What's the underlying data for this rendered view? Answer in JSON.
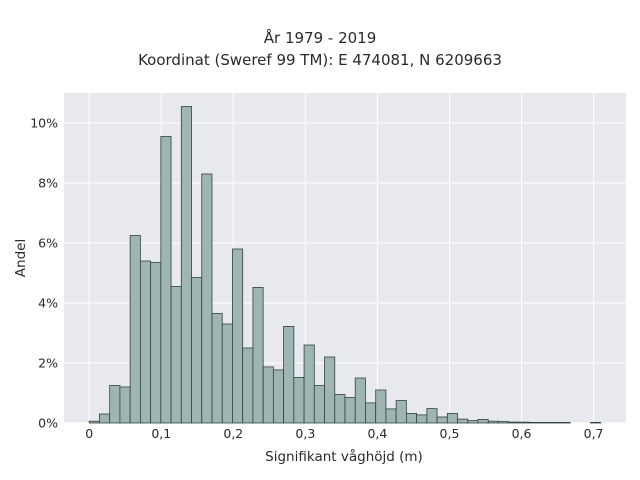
{
  "chart_data": {
    "type": "bar",
    "title": "År 1979 - 2019",
    "subtitle": "Koordinat (Sweref 99 TM): E 474081, N 6209663",
    "xlabel": "Signifikant våghöjd (m)",
    "ylabel": "Andel",
    "xlim": [
      -0.035,
      0.745
    ],
    "ylim": [
      0,
      11
    ],
    "x_ticks": [
      0,
      0.1,
      0.2,
      0.3,
      0.4,
      0.5,
      0.6,
      0.7
    ],
    "x_tick_labels": [
      "0",
      "0,1",
      "0,2",
      "0,3",
      "0,4",
      "0,5",
      "0,6",
      "0,7"
    ],
    "y_ticks": [
      0,
      2,
      4,
      6,
      8,
      10
    ],
    "y_tick_labels": [
      "0%",
      "2%",
      "4%",
      "6%",
      "8%",
      "10%"
    ],
    "bin_width": 0.0142,
    "bin_starts": [
      0.0,
      0.0142,
      0.0284,
      0.0426,
      0.0568,
      0.071,
      0.0852,
      0.0994,
      0.1136,
      0.1278,
      0.142,
      0.1562,
      0.1704,
      0.1846,
      0.1988,
      0.213,
      0.2272,
      0.2414,
      0.2556,
      0.2698,
      0.284,
      0.2982,
      0.3124,
      0.3266,
      0.3408,
      0.355,
      0.3692,
      0.3834,
      0.3976,
      0.4118,
      0.426,
      0.4402,
      0.4544,
      0.4686,
      0.4828,
      0.497,
      0.5112,
      0.5254,
      0.5396,
      0.5538,
      0.568,
      0.5822,
      0.5964,
      0.6106,
      0.6248,
      0.639,
      0.6532,
      0.6958
    ],
    "values": [
      0.06,
      0.3,
      1.25,
      1.2,
      6.25,
      5.4,
      5.35,
      9.55,
      4.55,
      10.55,
      4.85,
      8.3,
      3.65,
      3.3,
      5.8,
      2.5,
      4.52,
      1.87,
      1.77,
      3.22,
      1.52,
      2.6,
      1.25,
      2.2,
      0.95,
      0.85,
      1.5,
      0.67,
      1.1,
      0.47,
      0.75,
      0.32,
      0.27,
      0.48,
      0.2,
      0.32,
      0.13,
      0.08,
      0.12,
      0.06,
      0.05,
      0.03,
      0.03,
      0.02,
      0.02,
      0.02,
      0.02,
      0.02
    ],
    "bar_color": "#9fb5b3",
    "bar_edge_color": "#2f4442",
    "background_color": "#e8e8ef",
    "grid": true,
    "grid_color": "#ffffff"
  }
}
